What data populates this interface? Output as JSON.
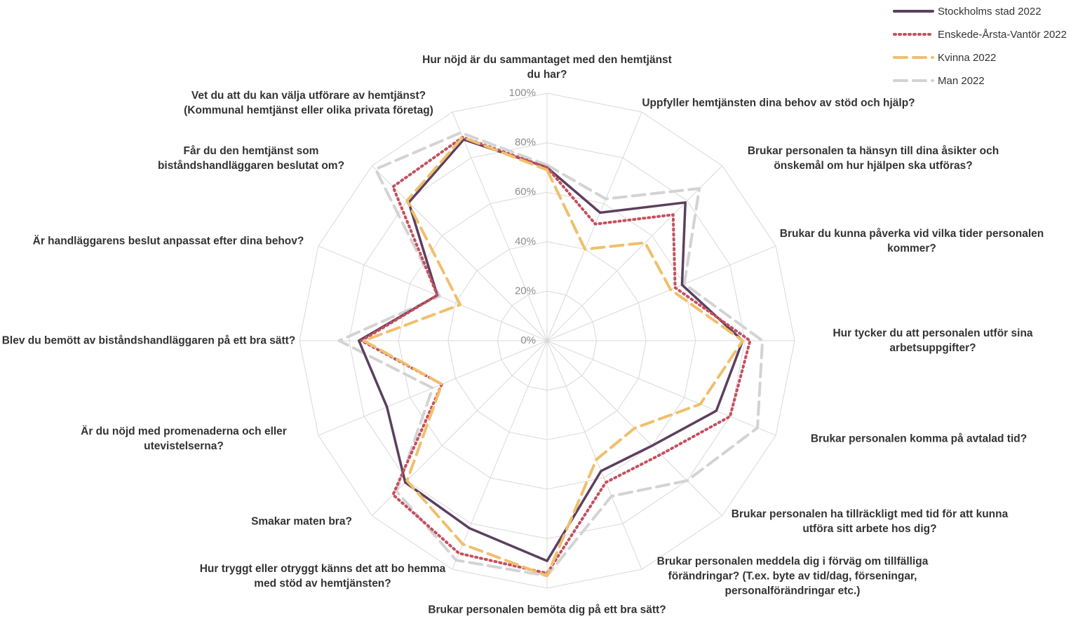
{
  "chart_data": {
    "type": "radar",
    "categories": [
      "Hur nöjd är du sammantaget med den hemtjänst du har?",
      "Uppfyller hemtjänsten dina behov av stöd och hjälp?",
      "Brukar personalen ta hänsyn till dina åsikter och önskemål om hur hjälpen ska utföras?",
      "Brukar du kunna påverka vid vilka tider personalen kommer?",
      "Hur tycker du att personalen utför sina arbetsuppgifter?",
      "Brukar personalen komma på avtalad tid?",
      "Brukar personalen ha tillräckligt med tid för att kunna utföra sitt arbete hos dig?",
      "Brukar personalen meddela dig i förväg om tillfälliga förändringar? (T.ex. byte av tid/dag, förseningar, personalförändringar etc.)",
      "Brukar personalen bemöta dig på ett bra sätt?",
      "Hur tryggt eller otryggt känns det att bo hemma med stöd av hemtjänsten?",
      "Smakar maten bra?",
      "Är du nöjd med promenaderna och eller utevistelserna?",
      "Blev du bemött av biståndshandläggaren på ett bra sätt?",
      "Är handläggarens beslut anpassat efter dina behov?",
      "Får du den hemtjänst som biståndshandläggaren beslutat om?",
      "Vet du att du kan välja utförare av hemtjänst? (Kommunal hemtjänst eller olika privata företag)"
    ],
    "series": [
      {
        "name": "Stockholms stad 2022",
        "color": "#5c3f5f",
        "style": "solid",
        "values": [
          70,
          56,
          79,
          59,
          79,
          74,
          60,
          57,
          89,
          82,
          81,
          70,
          76,
          48,
          79,
          88
        ]
      },
      {
        "name": "Enskede-Årsta-Vantör 2022",
        "color": "#c4505f",
        "style": "dotted",
        "values": [
          70,
          51,
          72,
          56,
          82,
          80,
          65,
          62,
          94,
          93,
          88,
          46,
          75,
          48,
          88,
          89
        ]
      },
      {
        "name": "Kvinna 2022",
        "color": "#f0bf6c",
        "style": "dashed",
        "values": [
          69,
          40,
          56,
          54,
          79,
          67,
          50,
          52,
          95,
          89,
          80,
          46,
          74,
          38,
          80,
          89
        ]
      },
      {
        "name": "Man 2022",
        "color": "#d3d3d3",
        "style": "dashed",
        "values": [
          71,
          62,
          87,
          60,
          87,
          92,
          80,
          68,
          95,
          96,
          86,
          50,
          84,
          47,
          98,
          91
        ]
      }
    ],
    "rlim": [
      0,
      100
    ],
    "rticks": [
      {
        "value": 0,
        "label": "0%"
      },
      {
        "value": 20,
        "label": "20%"
      },
      {
        "value": 40,
        "label": "40%"
      },
      {
        "value": 60,
        "label": "60%"
      },
      {
        "value": 80,
        "label": "80%"
      },
      {
        "value": 100,
        "label": "100%"
      }
    ],
    "grid": true,
    "legend": "top-right"
  }
}
